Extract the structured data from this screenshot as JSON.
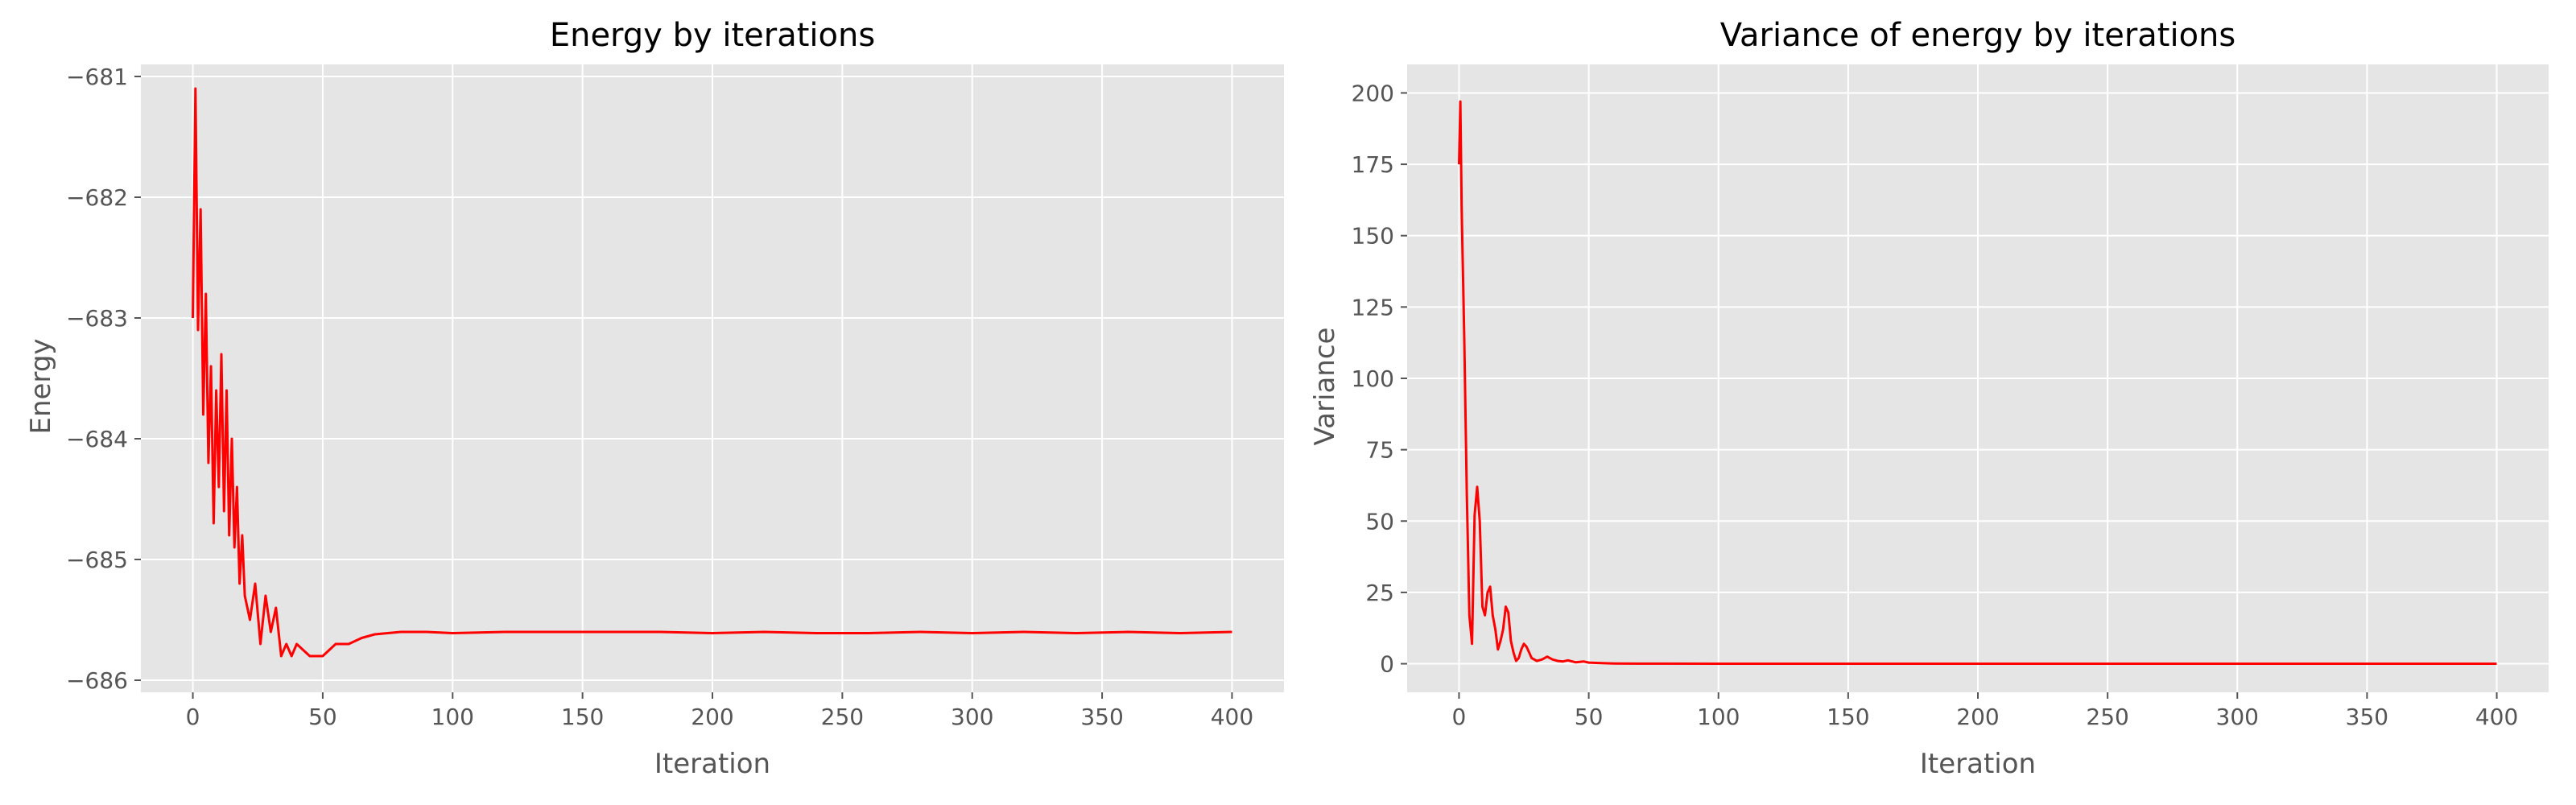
{
  "style": {
    "panel_background": "#e5e5e5",
    "grid_color": "#ffffff",
    "series_color": "#ff0000",
    "text_color": "#555555",
    "title_color": "#000000"
  },
  "chart_data": [
    {
      "type": "line",
      "title": "Energy by iterations",
      "xlabel": "Iteration",
      "ylabel": "Energy",
      "xlim": [
        -20,
        420
      ],
      "ylim": [
        -686.1,
        -680.9
      ],
      "xticks": [
        0,
        50,
        100,
        150,
        200,
        250,
        300,
        350,
        400
      ],
      "yticks": [
        -686,
        -685,
        -684,
        -683,
        -682,
        -681
      ],
      "ytick_labels": [
        "−686",
        "−685",
        "−684",
        "−683",
        "−682",
        "−681"
      ],
      "grid": true,
      "series": [
        {
          "color": "#ff0000",
          "x": [
            0,
            1,
            2,
            3,
            4,
            5,
            6,
            7,
            8,
            9,
            10,
            11,
            12,
            13,
            14,
            15,
            16,
            17,
            18,
            19,
            20,
            22,
            24,
            26,
            28,
            30,
            32,
            34,
            36,
            38,
            40,
            45,
            50,
            55,
            60,
            65,
            70,
            80,
            90,
            100,
            120,
            140,
            160,
            180,
            200,
            220,
            240,
            260,
            280,
            300,
            320,
            340,
            360,
            380,
            400
          ],
          "y": [
            -683.0,
            -681.1,
            -683.1,
            -682.1,
            -683.8,
            -682.8,
            -684.2,
            -683.4,
            -684.7,
            -683.6,
            -684.4,
            -683.3,
            -684.6,
            -683.6,
            -684.8,
            -684.0,
            -684.9,
            -684.4,
            -685.2,
            -684.8,
            -685.3,
            -685.5,
            -685.2,
            -685.7,
            -685.3,
            -685.6,
            -685.4,
            -685.8,
            -685.7,
            -685.8,
            -685.7,
            -685.8,
            -685.8,
            -685.7,
            -685.7,
            -685.65,
            -685.62,
            -685.6,
            -685.6,
            -685.61,
            -685.6,
            -685.6,
            -685.6,
            -685.6,
            -685.61,
            -685.6,
            -685.61,
            -685.61,
            -685.6,
            -685.61,
            -685.6,
            -685.61,
            -685.6,
            -685.61,
            -685.6
          ]
        }
      ]
    },
    {
      "type": "line",
      "title": "Variance of energy by iterations",
      "xlabel": "Iteration",
      "ylabel": "Variance",
      "xlim": [
        -20,
        420
      ],
      "ylim": [
        -10,
        210
      ],
      "xticks": [
        0,
        50,
        100,
        150,
        200,
        250,
        300,
        350,
        400
      ],
      "yticks": [
        0,
        25,
        50,
        75,
        100,
        125,
        150,
        175,
        200
      ],
      "ytick_labels": [
        "0",
        "25",
        "50",
        "75",
        "100",
        "125",
        "150",
        "175",
        "200"
      ],
      "grid": true,
      "series": [
        {
          "color": "#ff0000",
          "x": [
            0,
            0.5,
            1,
            2,
            3,
            4,
            5,
            6,
            7,
            8,
            9,
            10,
            11,
            12,
            13,
            14,
            15,
            16,
            17,
            18,
            19,
            20,
            21,
            22,
            23,
            24,
            25,
            26,
            27,
            28,
            30,
            32,
            34,
            36,
            38,
            40,
            42,
            45,
            48,
            50,
            55,
            60,
            70,
            80,
            100,
            150,
            200,
            250,
            300,
            350,
            400
          ],
          "y": [
            175,
            197,
            160,
            115,
            60,
            17,
            7,
            52,
            62,
            50,
            20,
            17,
            25,
            27,
            17,
            12,
            5,
            8,
            12,
            20,
            18,
            8,
            4,
            1,
            2,
            5,
            7,
            6,
            4,
            2,
            1,
            1.5,
            2.5,
            1.5,
            1,
            0.8,
            1.2,
            0.5,
            0.8,
            0.4,
            0.2,
            0.1,
            0.05,
            0.03,
            0.02,
            0.02,
            0.02,
            0.02,
            0.02,
            0.02,
            0.02
          ]
        }
      ]
    }
  ]
}
